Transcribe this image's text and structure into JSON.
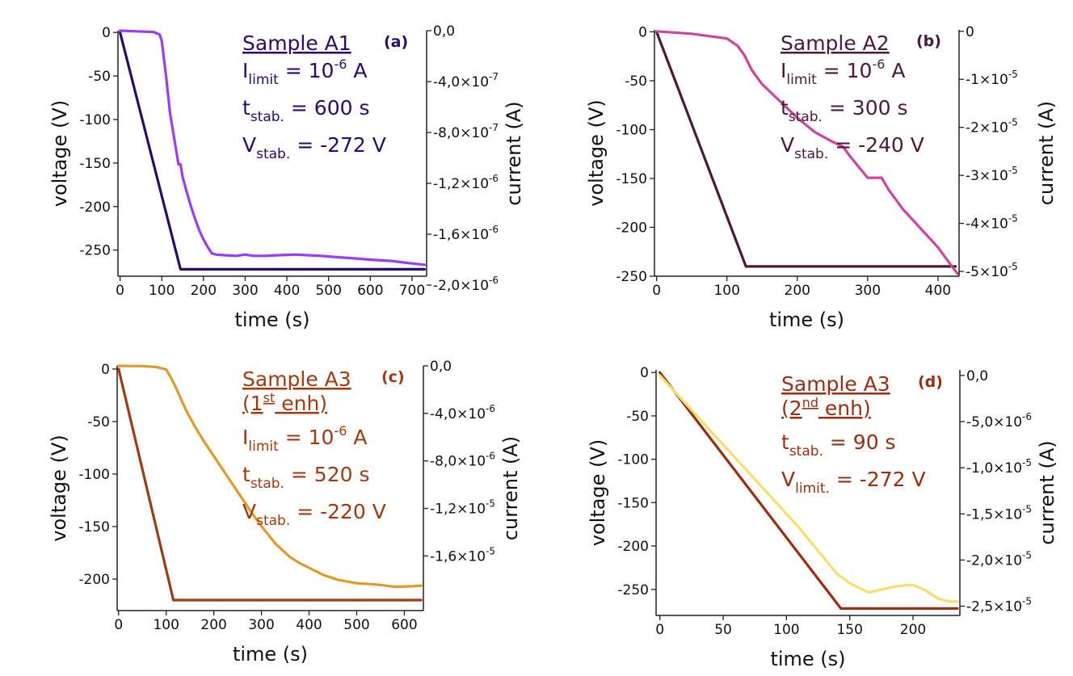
{
  "chart_data": [
    {
      "type": "line",
      "panel_label": "(a)",
      "xlabel": "time (s)",
      "ylabel": "voltage (V)",
      "y2label": "current (A)",
      "xlim": [
        -5,
        735
      ],
      "ylim": [
        -280,
        2
      ],
      "y2lim": [
        -1.93e-06,
        0.0
      ],
      "xticks": [
        0,
        100,
        200,
        300,
        400,
        500,
        600,
        700
      ],
      "yticks": [
        0,
        -50,
        -100,
        -150,
        -200,
        -250
      ],
      "y2ticks": [
        0,
        -4e-07,
        -8e-07,
        -1.2e-06,
        -1.6e-06,
        -2e-06
      ],
      "y2ticklabels": [
        "0,0",
        "-4,0×10-7",
        "-8,0×10-7",
        "-1,2×10-6",
        "-1,6×10-6",
        "-2,0×10-6"
      ],
      "annotation": {
        "title": "Sample A1",
        "lines": [
          {
            "main": "I",
            "sub": "limit",
            "rest": " = 10",
            "sup": "-6",
            "tail": " A"
          },
          {
            "main": "t",
            "sub": "stab.",
            "rest": " = 600 s",
            "sup": "",
            "tail": ""
          },
          {
            "main": "V",
            "sub": "stab.",
            "rest": " = -272 V",
            "sup": "",
            "tail": ""
          }
        ]
      },
      "colors": {
        "voltage": "#2a0a6a",
        "current": "#9a3cff",
        "text": "#2a0a6a"
      },
      "series": [
        {
          "name": "voltage",
          "axis": "left",
          "x": [
            0,
            145,
            730
          ],
          "y": [
            0,
            -272,
            -272
          ]
        },
        {
          "name": "current",
          "axis": "right",
          "x": [
            0,
            40,
            80,
            95,
            100,
            110,
            120,
            130,
            135,
            140,
            145,
            150,
            160,
            170,
            180,
            190,
            200,
            210,
            220,
            230,
            250,
            280,
            300,
            320,
            350,
            380,
            420,
            450,
            480,
            520,
            560,
            600,
            650,
            700,
            730
          ],
          "y": [
            0,
            -5e-09,
            -1e-08,
            -3e-08,
            -8e-08,
            -3.5e-07,
            -6.5e-07,
            -8.5e-07,
            -9.5e-07,
            -1.05e-06,
            -1.05e-06,
            -1.15e-06,
            -1.27e-06,
            -1.38e-06,
            -1.48e-06,
            -1.57e-06,
            -1.64e-06,
            -1.7e-06,
            -1.75e-06,
            -1.76e-06,
            -1.765e-06,
            -1.77e-06,
            -1.76e-06,
            -1.77e-06,
            -1.77e-06,
            -1.765e-06,
            -1.76e-06,
            -1.765e-06,
            -1.77e-06,
            -1.78e-06,
            -1.79e-06,
            -1.8e-06,
            -1.81e-06,
            -1.83e-06,
            -1.84e-06
          ]
        }
      ]
    },
    {
      "type": "line",
      "panel_label": "(b)",
      "xlabel": "time (s)",
      "ylabel": "voltage (V)",
      "y2label": "current (A)",
      "xlim": [
        -3,
        430
      ],
      "ylim": [
        -250,
        2
      ],
      "y2lim": [
        -5.1e-05,
        3e-07
      ],
      "xticks": [
        0,
        100,
        200,
        300,
        400
      ],
      "yticks": [
        0,
        -50,
        -100,
        -150,
        -200,
        -250
      ],
      "y2ticks": [
        0,
        -1e-05,
        -2e-05,
        -3e-05,
        -4e-05,
        -5e-05
      ],
      "y2ticklabels": [
        "0",
        "-1×10-5",
        "-2×10-5",
        "-3×10-5",
        "-4×10-5",
        "-5×10-5"
      ],
      "annotation": {
        "title": "Sample A2",
        "lines": [
          {
            "main": "I",
            "sub": "limit",
            "rest": " = 10",
            "sup": "-6",
            "tail": " A"
          },
          {
            "main": "t",
            "sub": "stab.",
            "rest": " = 300 s",
            "sup": "",
            "tail": ""
          },
          {
            "main": "V",
            "sub": "stab.",
            "rest": " = -240 V",
            "sup": "",
            "tail": ""
          }
        ]
      },
      "colors": {
        "voltage": "#4a1a3a",
        "current": "#d0449a",
        "text": "#4a1a3a"
      },
      "series": [
        {
          "name": "voltage",
          "axis": "left",
          "x": [
            0,
            127,
            425
          ],
          "y": [
            0,
            -240,
            -240
          ]
        },
        {
          "name": "current",
          "axis": "right",
          "x": [
            0,
            50,
            100,
            115,
            125,
            135,
            150,
            175,
            200,
            225,
            250,
            265,
            275,
            300,
            320,
            330,
            350,
            375,
            400,
            420,
            428
          ],
          "y": [
            0,
            -5e-07,
            -1.5e-06,
            -3e-06,
            -5e-06,
            -8e-06,
            -1.1e-05,
            -1.45e-05,
            -1.8e-05,
            -2.1e-05,
            -2.3e-05,
            -2.4e-05,
            -2.6e-05,
            -3.05e-05,
            -3.05e-05,
            -3.3e-05,
            -3.7e-05,
            -4.1e-05,
            -4.5e-05,
            -4.9e-05,
            -5.05e-05
          ]
        }
      ]
    },
    {
      "type": "line",
      "panel_label": "(c)",
      "xlabel": "time (s)",
      "ylabel": "voltage (V)",
      "y2label": "current (A)",
      "xlim": [
        -3,
        640
      ],
      "ylim": [
        -230,
        3
      ],
      "y2lim": [
        -2.06e-05,
        0.0
      ],
      "xticks": [
        0,
        100,
        200,
        300,
        400,
        500,
        600
      ],
      "yticks": [
        0,
        -50,
        -100,
        -150,
        -200
      ],
      "y2ticks": [
        0,
        -4e-06,
        -8e-06,
        -1.2e-05,
        -1.6e-05
      ],
      "y2ticklabels": [
        "0,0",
        "-4,0×10-6",
        "-8,0×10-6",
        "-1,2×10-5",
        "-1,6×10-5"
      ],
      "annotation": {
        "title": "Sample A3",
        "title2": {
          "open": "(1",
          "sup": "st",
          "close": " enh)"
        },
        "lines": [
          {
            "main": "I",
            "sub": "limit",
            "rest": " = 10",
            "sup": "-6",
            "tail": " A"
          },
          {
            "main": "t",
            "sub": "stab.",
            "rest": " = 520 s",
            "sup": "",
            "tail": ""
          },
          {
            "main": "V",
            "sub": "stab.",
            "rest": " = -220 V",
            "sup": "",
            "tail": ""
          }
        ]
      },
      "colors": {
        "voltage": "#a03a10",
        "current": "#e09a28",
        "text": "#a03a10"
      },
      "series": [
        {
          "name": "voltage",
          "axis": "left",
          "x": [
            0,
            115,
            635
          ],
          "y": [
            0,
            -220,
            -220
          ]
        },
        {
          "name": "current",
          "axis": "right",
          "x": [
            0,
            50,
            80,
            100,
            110,
            120,
            140,
            160,
            180,
            200,
            220,
            240,
            260,
            280,
            300,
            330,
            360,
            380,
            400,
            430,
            460,
            500,
            540,
            580,
            620,
            635
          ],
          "y": [
            0,
            -2e-08,
            -1e-07,
            -3e-07,
            -1e-06,
            -1.8e-06,
            -3.6e-06,
            -5.1e-06,
            -6.4e-06,
            -7.6e-06,
            -8.8e-06,
            -1e-05,
            -1.12e-05,
            -1.24e-05,
            -1.35e-05,
            -1.5e-05,
            -1.61e-05,
            -1.66e-05,
            -1.7e-05,
            -1.76e-05,
            -1.8e-05,
            -1.83e-05,
            -1.84e-05,
            -1.86e-05,
            -1.855e-05,
            -1.85e-05
          ]
        }
      ]
    },
    {
      "type": "line",
      "panel_label": "(d)",
      "xlabel": "time (s)",
      "ylabel": "voltage (V)",
      "y2label": "current (A)",
      "xlim": [
        -3,
        237
      ],
      "ylim": [
        -280,
        3
      ],
      "y2lim": [
        -2.6e-05,
        6e-07
      ],
      "xticks": [
        0,
        50,
        100,
        150,
        200
      ],
      "yticks": [
        0,
        -50,
        -100,
        -150,
        -200,
        -250
      ],
      "y2ticks": [
        0,
        -5e-06,
        -1e-05,
        -1.5e-05,
        -2e-05,
        -2.5e-05
      ],
      "y2ticklabels": [
        "0,0",
        "-5,0×10-6",
        "-1,0×10-5",
        "-1,5×10-5",
        "-2,0×10-5",
        "-2,5×10-5"
      ],
      "annotation": {
        "title": "Sample A3",
        "title2": {
          "open": "(2",
          "sup": "nd",
          "close": " enh)"
        },
        "lines": [
          {
            "main": "t",
            "sub": "stab.",
            "rest": " = 90 s",
            "sup": "",
            "tail": ""
          },
          {
            "main": "V",
            "sub": "limit.",
            "rest": " = -272 V",
            "sup": "",
            "tail": ""
          }
        ]
      },
      "colors": {
        "voltage": "#9a2e10",
        "current": "#f7dd6a",
        "text": "#9a2e10"
      },
      "series": [
        {
          "name": "voltage",
          "axis": "left",
          "x": [
            0,
            143,
            235
          ],
          "y": [
            0,
            -272,
            -272
          ]
        },
        {
          "name": "current",
          "axis": "right",
          "x": [
            0,
            10,
            30,
            60,
            90,
            110,
            125,
            140,
            150,
            160,
            165,
            175,
            185,
            195,
            200,
            210,
            220,
            230,
            235
          ],
          "y": [
            0,
            -1.5e-06,
            -4.5e-06,
            -9e-06,
            -1.35e-05,
            -1.65e-05,
            -1.9e-05,
            -2.15e-05,
            -2.25e-05,
            -2.32e-05,
            -2.35e-05,
            -2.32e-05,
            -2.29e-05,
            -2.27e-05,
            -2.27e-05,
            -2.33e-05,
            -2.42e-05,
            -2.45e-05,
            -2.45e-05
          ]
        }
      ]
    }
  ]
}
